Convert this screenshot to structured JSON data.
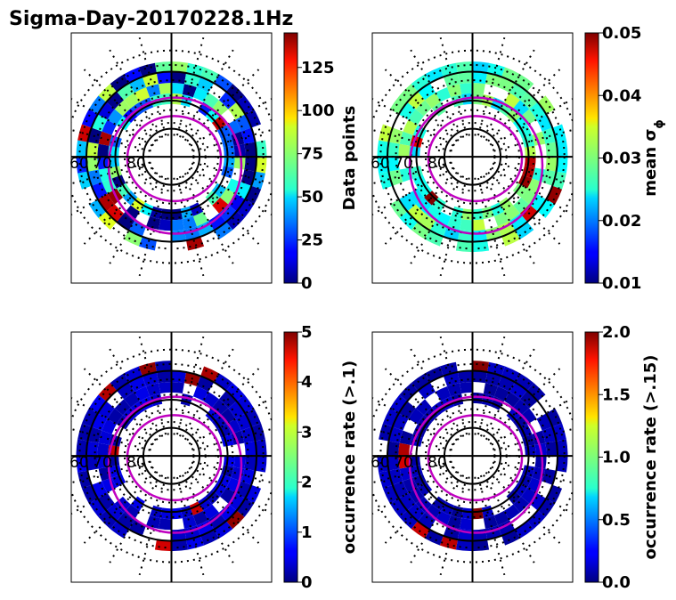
{
  "figure": {
    "title": "Sigma-Day-20170228.1Hz"
  },
  "chart_data": [
    {
      "type": "heatmap",
      "projection": "polar",
      "panel": "top-left",
      "colorbar": {
        "label": "Data points",
        "range": [
          0,
          145
        ],
        "ticks": [
          0,
          25,
          50,
          75,
          100,
          125
        ],
        "tick_labels": [
          "0",
          "25",
          "50",
          "75",
          "100",
          "125"
        ]
      },
      "lat_labels": [
        "60",
        "70",
        "80"
      ],
      "tone": 0.25,
      "variation": 0.35
    },
    {
      "type": "heatmap",
      "projection": "polar",
      "panel": "top-right",
      "colorbar": {
        "label": "mean σ",
        "label_sub": "ϕ",
        "range": [
          0.01,
          0.05
        ],
        "ticks": [
          0.01,
          0.02,
          0.03,
          0.04,
          0.05
        ],
        "tick_labels": [
          "0.01",
          "0.02",
          "0.03",
          "0.04",
          "0.05"
        ]
      },
      "lat_labels": [
        "60",
        "70",
        "80"
      ],
      "tone": 0.45,
      "variation": 0.12
    },
    {
      "type": "heatmap",
      "projection": "polar",
      "panel": "bottom-left",
      "colorbar": {
        "label": "occurrence rate (>.1)",
        "range": [
          0,
          5
        ],
        "ticks": [
          0,
          1,
          2,
          3,
          4,
          5
        ],
        "tick_labels": [
          "0",
          "1",
          "2",
          "3",
          "4",
          "5"
        ]
      },
      "lat_labels": [
        "60",
        "70",
        "80"
      ],
      "tone": 0.07,
      "variation": 0.04
    },
    {
      "type": "heatmap",
      "projection": "polar",
      "panel": "bottom-right",
      "colorbar": {
        "label": "occurrence rate (>.15)",
        "range": [
          0,
          2
        ],
        "ticks": [
          0,
          0.5,
          1,
          1.5,
          2
        ],
        "tick_labels": [
          "0.0",
          "0.5",
          "1.0",
          "1.5",
          "2.0"
        ]
      },
      "lat_labels": [
        "60",
        "70",
        "80"
      ],
      "tone": 0.05,
      "variation": 0.03
    }
  ]
}
